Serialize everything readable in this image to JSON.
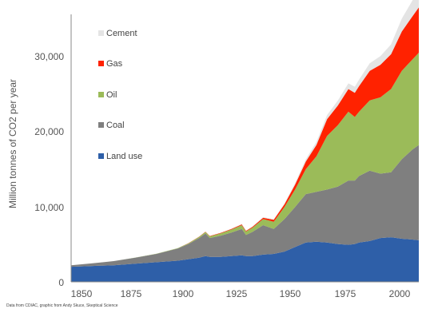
{
  "chart_data": {
    "type": "area",
    "stacked": true,
    "title": "",
    "xlabel": "",
    "ylabel": "Million tonnes of CO2 per year",
    "xlim": [
      1850,
      2013
    ],
    "ylim": [
      0,
      36000
    ],
    "x_ticks": [
      "1850",
      "1875",
      "1900",
      "1925",
      "1950",
      "1975",
      "2000"
    ],
    "y_ticks": [
      "0",
      "10,000",
      "20,000",
      "30,000"
    ],
    "grid": false,
    "legend_position": "top-left",
    "source_note": "Data from CDIAC, graphic from Andy Skuce, Skeptical Science",
    "x": [
      1850,
      1860,
      1870,
      1880,
      1890,
      1900,
      1905,
      1910,
      1913,
      1915,
      1920,
      1925,
      1930,
      1932,
      1935,
      1940,
      1945,
      1950,
      1955,
      1960,
      1965,
      1970,
      1975,
      1980,
      1983,
      1985,
      1990,
      1995,
      2000,
      2005,
      2010,
      2013
    ],
    "series": [
      {
        "name": "Land use",
        "color": "#2e5fa8",
        "values": [
          2000,
          2100,
          2200,
          2400,
          2600,
          2800,
          3000,
          3200,
          3400,
          3300,
          3300,
          3400,
          3500,
          3400,
          3400,
          3600,
          3700,
          4000,
          4600,
          5200,
          5300,
          5200,
          5000,
          4900,
          5000,
          5200,
          5400,
          5800,
          5900,
          5700,
          5600,
          5500
        ]
      },
      {
        "name": "Coal",
        "color": "#7f7f7f",
        "values": [
          200,
          350,
          550,
          800,
          1100,
          1600,
          2000,
          2600,
          3000,
          2500,
          2800,
          3100,
          3500,
          2800,
          3200,
          3900,
          3300,
          4300,
          5300,
          6400,
          6600,
          7000,
          7600,
          8500,
          8400,
          8800,
          9300,
          8500,
          8600,
          10500,
          11900,
          12600
        ]
      },
      {
        "name": "Oil",
        "color": "#9bbb59",
        "values": [
          0,
          0,
          0,
          10,
          30,
          60,
          100,
          150,
          200,
          220,
          300,
          400,
          500,
          450,
          550,
          800,
          950,
          1600,
          2300,
          3300,
          4700,
          7100,
          8100,
          9100,
          8400,
          8500,
          9300,
          10100,
          11000,
          11700,
          11900,
          12200
        ]
      },
      {
        "name": "Gas",
        "color": "#ff2200",
        "values": [
          0,
          0,
          0,
          0,
          0,
          10,
          20,
          30,
          40,
          50,
          60,
          80,
          100,
          100,
          120,
          180,
          250,
          350,
          650,
          1000,
          1500,
          2200,
          2600,
          3000,
          3200,
          3400,
          3900,
          4300,
          4600,
          5200,
          5700,
          6000
        ]
      },
      {
        "name": "Cement",
        "color": "#e4e4e4",
        "values": [
          0,
          0,
          0,
          0,
          0,
          10,
          15,
          20,
          25,
          25,
          30,
          40,
          50,
          45,
          55,
          80,
          90,
          120,
          200,
          300,
          400,
          550,
          650,
          750,
          800,
          850,
          1000,
          1150,
          1300,
          1700,
          2100,
          2300
        ]
      }
    ]
  }
}
